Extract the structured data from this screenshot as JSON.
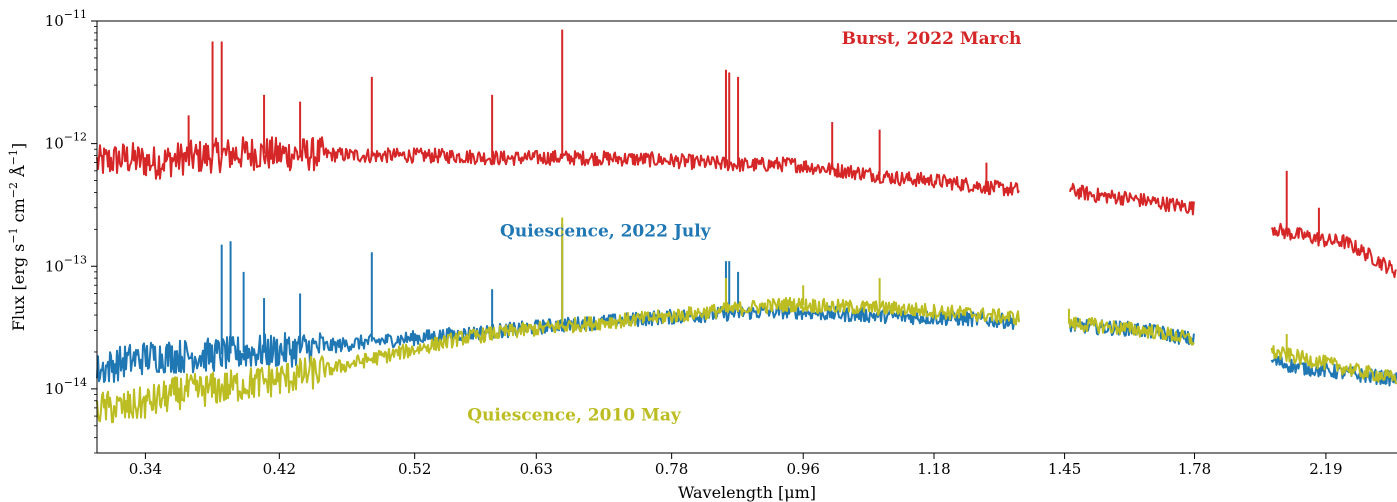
{
  "chart_data": {
    "type": "line",
    "xlabel": "Wavelength [μm]",
    "ylabel_parts": {
      "prefix": "Flux [erg s",
      "s_exp": "−1",
      "cm": " cm",
      "cm_exp": "−2",
      "angstrom": " Å",
      "a_exp": "−1",
      "suffix": "]"
    },
    "x_scale": "log",
    "xlim": [
      0.315,
      2.45
    ],
    "y_scale": "log",
    "ylim": [
      3e-15,
      1e-11
    ],
    "x_ticks": [
      {
        "value": 0.34,
        "label": "0.34"
      },
      {
        "value": 0.42,
        "label": "0.42"
      },
      {
        "value": 0.52,
        "label": "0.52"
      },
      {
        "value": 0.63,
        "label": "0.63"
      },
      {
        "value": 0.78,
        "label": "0.78"
      },
      {
        "value": 0.96,
        "label": "0.96"
      },
      {
        "value": 1.18,
        "label": "1.18"
      },
      {
        "value": 1.45,
        "label": "1.45"
      },
      {
        "value": 1.78,
        "label": "1.78"
      },
      {
        "value": 2.19,
        "label": "2.19"
      }
    ],
    "y_ticks": [
      {
        "value": 1e-14,
        "base": "10",
        "exp": "−14"
      },
      {
        "value": 1e-13,
        "base": "10",
        "exp": "−13"
      },
      {
        "value": 1e-12,
        "base": "10",
        "exp": "−12"
      },
      {
        "value": 1e-11,
        "base": "10",
        "exp": "−11"
      }
    ],
    "colors": {
      "burst": "#d62728",
      "quiescence_2022": "#1f77b4",
      "quiescence_2010": "#bcbd22"
    },
    "series": [
      {
        "name": "Burst, 2022 March",
        "color": "#d62728",
        "segments": [
          [
            [
              0.315,
              7e-13
            ],
            [
              0.33,
              7.6e-13
            ],
            [
              0.345,
              7e-13
            ],
            [
              0.36,
              7.6e-13
            ],
            [
              0.38,
              8e-13
            ],
            [
              0.4,
              8.4e-13
            ],
            [
              0.42,
              8.2e-13
            ],
            [
              0.45,
              8.2e-13
            ],
            [
              0.48,
              8e-13
            ],
            [
              0.52,
              8e-13
            ],
            [
              0.56,
              7.9e-13
            ],
            [
              0.6,
              7.6e-13
            ],
            [
              0.65,
              7.7e-13
            ],
            [
              0.7,
              7.6e-13
            ],
            [
              0.76,
              7.4e-13
            ],
            [
              0.82,
              7e-13
            ],
            [
              0.88,
              6.7e-13
            ],
            [
              0.94,
              6.8e-13
            ],
            [
              1.0,
              6.2e-13
            ],
            [
              1.06,
              5.7e-13
            ],
            [
              1.12,
              5.2e-13
            ],
            [
              1.18,
              5e-13
            ],
            [
              1.25,
              4.6e-13
            ],
            [
              1.31,
              4.3e-13
            ],
            [
              1.35,
              4.2e-13
            ]
          ],
          [
            [
              1.46,
              4.2e-13
            ],
            [
              1.52,
              3.8e-13
            ],
            [
              1.6,
              3.6e-13
            ],
            [
              1.68,
              3.3e-13
            ],
            [
              1.78,
              3e-13
            ]
          ],
          [
            [
              2.01,
              2.1e-13
            ],
            [
              2.05,
              1.9e-13
            ],
            [
              2.1,
              1.8e-13
            ],
            [
              2.15,
              1.7e-13
            ],
            [
              2.2,
              1.6e-13
            ],
            [
              2.25,
              1.6e-13
            ],
            [
              2.3,
              1.4e-13
            ],
            [
              2.38,
              1.1e-13
            ],
            [
              2.45,
              9e-14
            ]
          ]
        ],
        "lines": [
          [
            0.364,
            1.7e-12
          ],
          [
            0.378,
            6.8e-12
          ],
          [
            0.3835,
            6.8e-12
          ],
          [
            0.41,
            2.5e-12
          ],
          [
            0.434,
            2.2e-12
          ],
          [
            0.486,
            3.5e-12
          ],
          [
            0.5876,
            2.5e-12
          ],
          [
            0.6563,
            8.5e-12
          ],
          [
            0.8498,
            4e-12
          ],
          [
            0.8542,
            3.8e-12
          ],
          [
            0.8662,
            3.5e-12
          ],
          [
            1.0049,
            1.5e-12
          ],
          [
            1.083,
            1.3e-12
          ],
          [
            1.2818,
            7e-13
          ],
          [
            2.0587,
            6e-13
          ],
          [
            2.166,
            3e-13
          ]
        ]
      },
      {
        "name": "Quiescence, 2022 July",
        "color": "#1f77b4",
        "segments": [
          [
            [
              0.315,
              1.4e-14
            ],
            [
              0.33,
              1.7e-14
            ],
            [
              0.345,
              1.85e-14
            ],
            [
              0.36,
              1.85e-14
            ],
            [
              0.38,
              1.9e-14
            ],
            [
              0.4,
              2e-14
            ],
            [
              0.42,
              2.05e-14
            ],
            [
              0.45,
              2.2e-14
            ],
            [
              0.48,
              2.4e-14
            ],
            [
              0.52,
              2.6e-14
            ],
            [
              0.56,
              2.8e-14
            ],
            [
              0.6,
              3e-14
            ],
            [
              0.65,
              3.3e-14
            ],
            [
              0.7,
              3.5e-14
            ],
            [
              0.76,
              3.8e-14
            ],
            [
              0.82,
              4e-14
            ],
            [
              0.88,
              4.2e-14
            ],
            [
              0.94,
              4.3e-14
            ],
            [
              1.0,
              4.1e-14
            ],
            [
              1.06,
              4e-14
            ],
            [
              1.12,
              3.9e-14
            ],
            [
              1.18,
              3.8e-14
            ],
            [
              1.25,
              3.7e-14
            ],
            [
              1.31,
              3.6e-14
            ],
            [
              1.35,
              3.5e-14
            ]
          ],
          [
            [
              1.46,
              3.3e-14
            ],
            [
              1.52,
              3.2e-14
            ],
            [
              1.6,
              3.1e-14
            ],
            [
              1.68,
              2.9e-14
            ],
            [
              1.78,
              2.5e-14
            ]
          ],
          [
            [
              2.01,
              1.7e-14
            ],
            [
              2.05,
              1.6e-14
            ],
            [
              2.1,
              1.5e-14
            ],
            [
              2.15,
              1.45e-14
            ],
            [
              2.2,
              1.4e-14
            ],
            [
              2.25,
              1.35e-14
            ],
            [
              2.3,
              1.3e-14
            ],
            [
              2.38,
              1.25e-14
            ],
            [
              2.45,
              1.2e-14
            ]
          ]
        ],
        "lines": [
          [
            0.3835,
            1.5e-13
          ],
          [
            0.3889,
            1.6e-13
          ],
          [
            0.397,
            9e-14
          ],
          [
            0.41,
            5.5e-14
          ],
          [
            0.434,
            6e-14
          ],
          [
            0.486,
            1.3e-13
          ],
          [
            0.5876,
            6.5e-14
          ],
          [
            0.6563,
            2.2e-13
          ],
          [
            0.8498,
            1.1e-13
          ],
          [
            0.8542,
            1.1e-13
          ],
          [
            0.8662,
            9e-14
          ]
        ]
      },
      {
        "name": "Quiescence, 2010 May",
        "color": "#bcbd22",
        "segments": [
          [
            [
              0.315,
              7e-15
            ],
            [
              0.33,
              7e-15
            ],
            [
              0.345,
              8e-15
            ],
            [
              0.36,
              9.5e-15
            ],
            [
              0.38,
              1e-14
            ],
            [
              0.4,
              1.1e-14
            ],
            [
              0.42,
              1.2e-14
            ],
            [
              0.45,
              1.4e-14
            ],
            [
              0.48,
              1.7e-14
            ],
            [
              0.52,
              2.1e-14
            ],
            [
              0.56,
              2.6e-14
            ],
            [
              0.6,
              2.9e-14
            ],
            [
              0.65,
              3.2e-14
            ],
            [
              0.7,
              3.5e-14
            ],
            [
              0.76,
              3.8e-14
            ],
            [
              0.82,
              4.2e-14
            ],
            [
              0.88,
              4.6e-14
            ],
            [
              0.94,
              4.9e-14
            ],
            [
              1.0,
              4.7e-14
            ],
            [
              1.06,
              4.6e-14
            ],
            [
              1.12,
              4.5e-14
            ],
            [
              1.18,
              4.3e-14
            ],
            [
              1.25,
              4.1e-14
            ],
            [
              1.31,
              3.9e-14
            ],
            [
              1.35,
              3.8e-14
            ]
          ],
          [
            [
              1.46,
              3.4e-14
            ],
            [
              1.52,
              3.3e-14
            ],
            [
              1.6,
              3.1e-14
            ],
            [
              1.68,
              2.9e-14
            ],
            [
              1.78,
              2.5e-14
            ]
          ],
          [
            [
              2.01,
              2e-14
            ],
            [
              2.05,
              1.9e-14
            ],
            [
              2.1,
              1.8e-14
            ],
            [
              2.15,
              1.7e-14
            ],
            [
              2.2,
              1.6e-14
            ],
            [
              2.25,
              1.5e-14
            ],
            [
              2.3,
              1.4e-14
            ],
            [
              2.38,
              1.3e-14
            ],
            [
              2.45,
              1.2e-14
            ]
          ]
        ],
        "lines": [
          [
            0.6563,
            2.5e-13
          ],
          [
            0.8498,
            8e-14
          ],
          [
            0.96,
            7e-14
          ],
          [
            1.083,
            8e-14
          ],
          [
            1.46,
            4.5e-14
          ],
          [
            2.0587,
            2.8e-14
          ]
        ]
      }
    ],
    "annotations": [
      {
        "text": "Burst, 2022 March",
        "color": "#d62728",
        "x": 1.02,
        "y": 6.5e-12,
        "anchor": "start"
      },
      {
        "text": "Quiescence, 2022 July",
        "color": "#1f77b4",
        "x": 0.595,
        "y": 1.75e-13,
        "anchor": "start"
      },
      {
        "text": "Quiescence, 2010 May",
        "color": "#bcbd22",
        "x": 0.565,
        "y": 5.5e-15,
        "anchor": "start"
      }
    ],
    "grid": false,
    "legend": "none"
  }
}
